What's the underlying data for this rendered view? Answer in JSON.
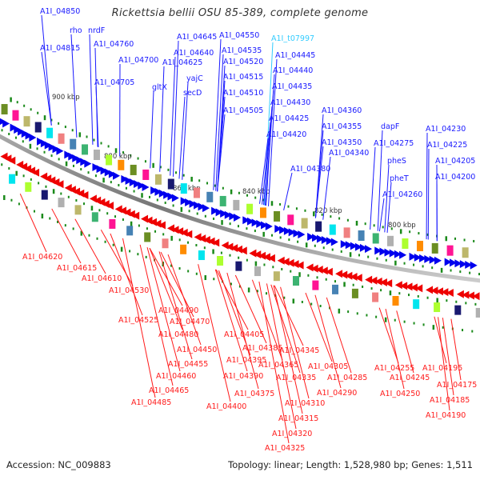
{
  "title": "Rickettsia bellii OSU 85-389, complete genome",
  "footer": {
    "accession": "Accession: NC_009883",
    "summary": "Topology: linear; Length: 1,528,980 bp; Genes: 1,511"
  },
  "colors": {
    "forward_label": "#1a1aff",
    "reverse_label": "#ff1a1a",
    "trna_label": "#33ccff",
    "backbone": "#888888",
    "tick": "#1a8a1a",
    "forward_arrow": "#0000ee",
    "reverse_arrow": "#ee0000"
  },
  "scale_labels": [
    "900 kbp",
    "880 kbp",
    "860 kbp",
    "840 kbp",
    "820 kbp",
    "800 kbp"
  ],
  "forward_labels": [
    {
      "text": "A1I_04850"
    },
    {
      "text": "rho"
    },
    {
      "text": "nrdF"
    },
    {
      "text": "A1I_04815"
    },
    {
      "text": "A1I_04760"
    },
    {
      "text": "A1I_04700"
    },
    {
      "text": "A1I_04705"
    },
    {
      "text": "gltX"
    },
    {
      "text": "A1I_04645"
    },
    {
      "text": "A1I_04640"
    },
    {
      "text": "A1I_04625"
    },
    {
      "text": "yajC"
    },
    {
      "text": "secD"
    },
    {
      "text": "A1I_04550"
    },
    {
      "text": "A1I_04535"
    },
    {
      "text": "A1I_04520"
    },
    {
      "text": "A1I_04515"
    },
    {
      "text": "A1I_04510"
    },
    {
      "text": "A1I_04505"
    },
    {
      "text": "A1I_t07997",
      "type": "trna"
    },
    {
      "text": "A1I_04445"
    },
    {
      "text": "A1I_04440"
    },
    {
      "text": "A1I_04435"
    },
    {
      "text": "A1I_04430"
    },
    {
      "text": "A1I_04425"
    },
    {
      "text": "A1I_04420"
    },
    {
      "text": "A1I_04380"
    },
    {
      "text": "A1I_04360"
    },
    {
      "text": "A1I_04355"
    },
    {
      "text": "A1I_04350"
    },
    {
      "text": "A1I_04340"
    },
    {
      "text": "dapF"
    },
    {
      "text": "A1I_04275"
    },
    {
      "text": "pheS"
    },
    {
      "text": "pheT"
    },
    {
      "text": "A1I_04260"
    },
    {
      "text": "A1I_04230"
    },
    {
      "text": "A1I_04225"
    },
    {
      "text": "A1I_04205"
    },
    {
      "text": "A1I_04200"
    }
  ],
  "reverse_labels": [
    {
      "text": "A1I_04620"
    },
    {
      "text": "A1I_04615"
    },
    {
      "text": "A1I_04610"
    },
    {
      "text": "A1I_04530"
    },
    {
      "text": "A1I_04525"
    },
    {
      "text": "A1I_04490"
    },
    {
      "text": "A1I_04470"
    },
    {
      "text": "A1I_04480"
    },
    {
      "text": "A1I_04450"
    },
    {
      "text": "A1I_04455"
    },
    {
      "text": "A1I_04460"
    },
    {
      "text": "A1I_04465"
    },
    {
      "text": "A1I_04485"
    },
    {
      "text": "A1I_04405"
    },
    {
      "text": "A1I_04385"
    },
    {
      "text": "A1I_04395"
    },
    {
      "text": "A1I_04390"
    },
    {
      "text": "A1I_04400"
    },
    {
      "text": "A1I_04375"
    },
    {
      "text": "A1I_04345"
    },
    {
      "text": "A1I_04365"
    },
    {
      "text": "A1I_04305"
    },
    {
      "text": "A1I_04335"
    },
    {
      "text": "A1I_04285"
    },
    {
      "text": "A1I_04290"
    },
    {
      "text": "A1I_04310"
    },
    {
      "text": "A1I_04315"
    },
    {
      "text": "A1I_04320"
    },
    {
      "text": "A1I_04325"
    },
    {
      "text": "A1I_04255"
    },
    {
      "text": "A1I_04245"
    },
    {
      "text": "A1I_04250"
    },
    {
      "text": "A1I_04195"
    },
    {
      "text": "A1I_04175"
    },
    {
      "text": "A1I_04185"
    },
    {
      "text": "A1I_04190"
    }
  ]
}
